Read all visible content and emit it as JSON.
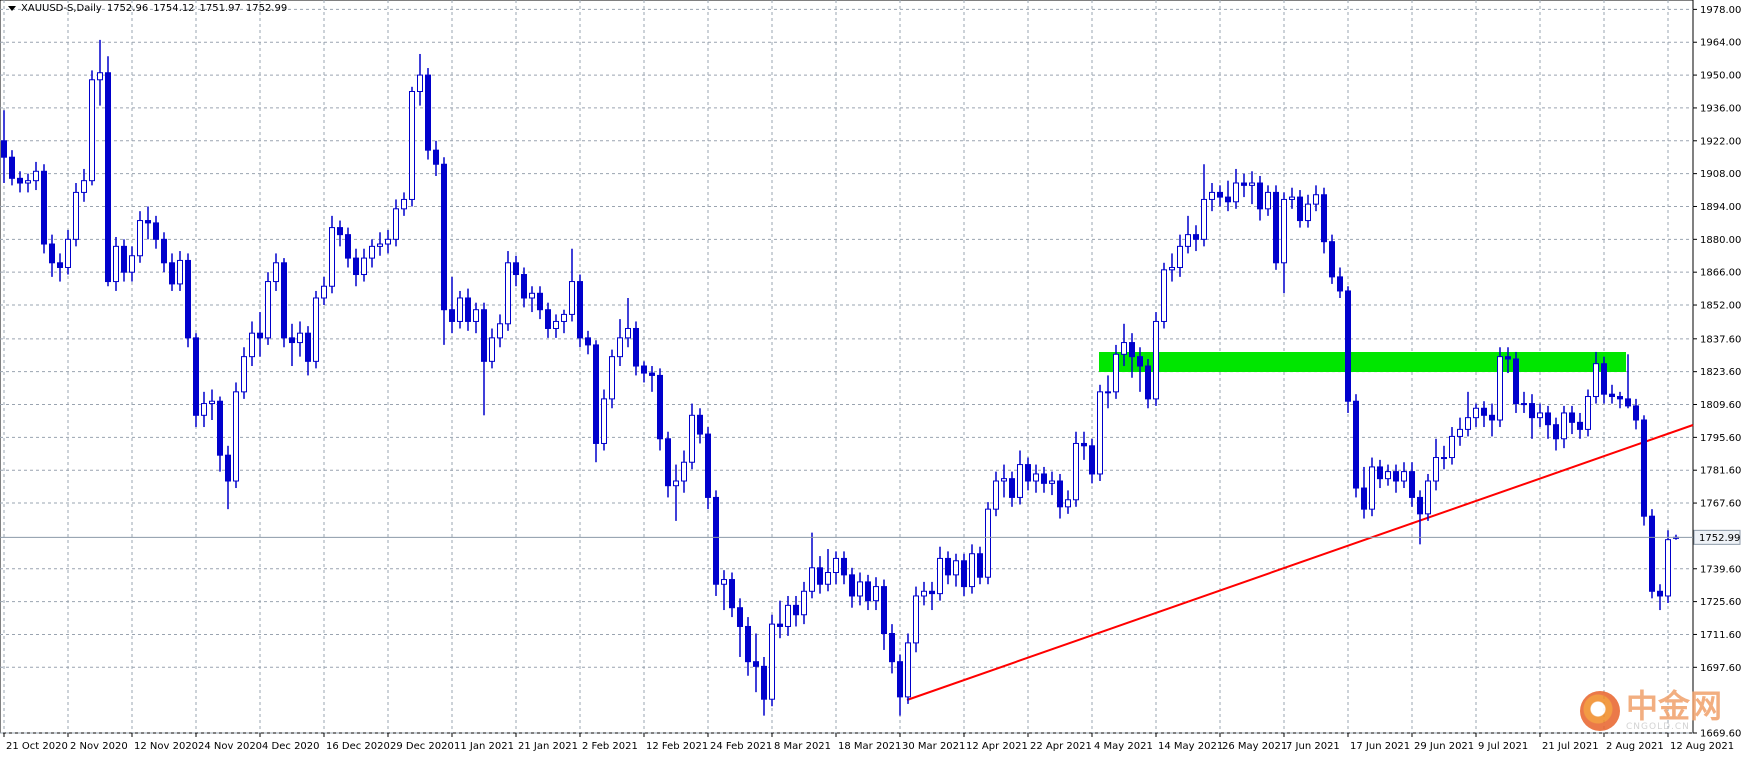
{
  "chart_data": {
    "type": "candlestick",
    "title": "XAUUSD-S,Daily",
    "bull_color": "#0000cc",
    "bear_color": "#0000cc",
    "grid": true,
    "ylim": [
      1669.6,
      1982
    ],
    "yticks": [
      {
        "value": 1978,
        "label": "1978.00"
      },
      {
        "value": 1964,
        "label": "1964.00"
      },
      {
        "value": 1950,
        "label": "1950.00"
      },
      {
        "value": 1936,
        "label": "1936.00"
      },
      {
        "value": 1922,
        "label": "1922.00"
      },
      {
        "value": 1908,
        "label": "1908.00"
      },
      {
        "value": 1894,
        "label": "1894.00"
      },
      {
        "value": 1880,
        "label": "1880.00"
      },
      {
        "value": 1866,
        "label": "1866.00"
      },
      {
        "value": 1852,
        "label": "1852.00"
      },
      {
        "value": 1837.6,
        "label": "1837.60"
      },
      {
        "value": 1823.6,
        "label": "1823.60"
      },
      {
        "value": 1809.6,
        "label": "1809.60"
      },
      {
        "value": 1795.6,
        "label": "1795.60"
      },
      {
        "value": 1781.6,
        "label": "1781.60"
      },
      {
        "value": 1767.6,
        "label": "1767.60"
      },
      {
        "value": 1739.6,
        "label": "1739.60"
      },
      {
        "value": 1725.6,
        "label": "1725.60"
      },
      {
        "value": 1711.6,
        "label": "1711.60"
      },
      {
        "value": 1697.6,
        "label": "1697.60"
      },
      {
        "value": 1669.6,
        "label": "1669.60"
      }
    ],
    "categories": [
      "21 Oct 2020",
      null,
      null,
      null,
      null,
      null,
      null,
      null,
      "2 Nov 2020",
      null,
      null,
      null,
      null,
      null,
      null,
      null,
      "12 Nov 2020",
      null,
      null,
      null,
      null,
      null,
      null,
      null,
      "24 Nov 2020",
      null,
      null,
      null,
      null,
      null,
      null,
      null,
      "4 Dec 2020",
      null,
      null,
      null,
      null,
      null,
      null,
      null,
      "16 Dec 2020",
      null,
      null,
      null,
      null,
      null,
      null,
      null,
      "29 Dec 2020",
      null,
      null,
      null,
      null,
      null,
      null,
      null,
      "11 Jan 2021",
      null,
      null,
      null,
      null,
      null,
      null,
      null,
      "21 Jan 2021",
      null,
      null,
      null,
      null,
      null,
      null,
      null,
      "2 Feb 2021",
      null,
      null,
      null,
      null,
      null,
      null,
      null,
      "12 Feb 2021",
      null,
      null,
      null,
      null,
      null,
      null,
      null,
      "24 Feb 2021",
      null,
      null,
      null,
      null,
      null,
      null,
      null,
      "8 Mar 2021",
      null,
      null,
      null,
      null,
      null,
      null,
      null,
      "18 Mar 2021",
      null,
      null,
      null,
      null,
      null,
      null,
      null,
      "30 Mar 2021",
      null,
      null,
      null,
      null,
      null,
      null,
      null,
      "12 Apr 2021",
      null,
      null,
      null,
      null,
      null,
      null,
      null,
      "22 Apr 2021",
      null,
      null,
      null,
      null,
      null,
      null,
      null,
      "4 May 2021",
      null,
      null,
      null,
      null,
      null,
      null,
      null,
      "14 May 2021",
      null,
      null,
      null,
      null,
      null,
      null,
      null,
      "26 May 2021",
      null,
      null,
      null,
      null,
      null,
      null,
      null,
      "7 Jun 2021",
      null,
      null,
      null,
      null,
      null,
      null,
      null,
      "17 Jun 2021",
      null,
      null,
      null,
      null,
      null,
      null,
      null,
      "29 Jun 2021",
      null,
      null,
      null,
      null,
      null,
      null,
      null,
      "9 Jul 2021",
      null,
      null,
      null,
      null,
      null,
      null,
      null,
      "21 Jul 2021",
      null,
      null,
      null,
      null,
      null,
      null,
      null,
      "2 Aug 2021",
      null,
      null,
      null,
      null,
      null,
      null,
      null,
      "12 Aug 2021",
      null
    ],
    "candles": [
      [
        1922,
        1935,
        1904,
        1915
      ],
      [
        1915,
        1918,
        1903,
        1906
      ],
      [
        1906,
        1909,
        1900,
        1904
      ],
      [
        1904,
        1908,
        1900,
        1905
      ],
      [
        1905,
        1913,
        1901,
        1909
      ],
      [
        1909,
        1912,
        1874,
        1878
      ],
      [
        1878,
        1882,
        1864,
        1870
      ],
      [
        1870,
        1874,
        1862,
        1868
      ],
      [
        1868,
        1884,
        1865,
        1880
      ],
      [
        1880,
        1904,
        1877,
        1900
      ],
      [
        1900,
        1910,
        1896,
        1905
      ],
      [
        1905,
        1952,
        1903,
        1948
      ],
      [
        1948,
        1965,
        1937,
        1951
      ],
      [
        1951,
        1958,
        1860,
        1862
      ],
      [
        1862,
        1881,
        1858,
        1877
      ],
      [
        1877,
        1880,
        1862,
        1866
      ],
      [
        1866,
        1877,
        1862,
        1873
      ],
      [
        1873,
        1892,
        1870,
        1888
      ],
      [
        1888,
        1894,
        1880,
        1887
      ],
      [
        1887,
        1890,
        1876,
        1880
      ],
      [
        1880,
        1883,
        1866,
        1870
      ],
      [
        1870,
        1874,
        1858,
        1861
      ],
      [
        1861,
        1875,
        1858,
        1871
      ],
      [
        1871,
        1874,
        1834,
        1838
      ],
      [
        1838,
        1840,
        1800,
        1805
      ],
      [
        1805,
        1815,
        1800,
        1810
      ],
      [
        1810,
        1816,
        1803,
        1811
      ],
      [
        1811,
        1813,
        1781,
        1788
      ],
      [
        1788,
        1792,
        1765,
        1777
      ],
      [
        1777,
        1819,
        1774,
        1815
      ],
      [
        1815,
        1834,
        1812,
        1830
      ],
      [
        1830,
        1845,
        1826,
        1840
      ],
      [
        1840,
        1849,
        1830,
        1838
      ],
      [
        1838,
        1866,
        1835,
        1862
      ],
      [
        1862,
        1874,
        1858,
        1870
      ],
      [
        1870,
        1872,
        1834,
        1838
      ],
      [
        1838,
        1844,
        1826,
        1836
      ],
      [
        1836,
        1845,
        1830,
        1840
      ],
      [
        1840,
        1843,
        1822,
        1828
      ],
      [
        1828,
        1858,
        1825,
        1855
      ],
      [
        1855,
        1864,
        1852,
        1860
      ],
      [
        1860,
        1890,
        1857,
        1885
      ],
      [
        1885,
        1888,
        1877,
        1882
      ],
      [
        1882,
        1885,
        1868,
        1872
      ],
      [
        1872,
        1876,
        1860,
        1865
      ],
      [
        1865,
        1876,
        1862,
        1872
      ],
      [
        1872,
        1880,
        1868,
        1877
      ],
      [
        1877,
        1883,
        1873,
        1878
      ],
      [
        1878,
        1884,
        1874,
        1880
      ],
      [
        1880,
        1897,
        1877,
        1893
      ],
      [
        1893,
        1900,
        1890,
        1897
      ],
      [
        1897,
        1945,
        1894,
        1943
      ],
      [
        1943,
        1959,
        1937,
        1950
      ],
      [
        1950,
        1953,
        1914,
        1918
      ],
      [
        1918,
        1922,
        1907,
        1912
      ],
      [
        1912,
        1915,
        1835,
        1850
      ],
      [
        1850,
        1864,
        1840,
        1845
      ],
      [
        1845,
        1858,
        1842,
        1855
      ],
      [
        1855,
        1859,
        1841,
        1845
      ],
      [
        1845,
        1853,
        1840,
        1850
      ],
      [
        1850,
        1853,
        1805,
        1828
      ],
      [
        1828,
        1842,
        1825,
        1838
      ],
      [
        1838,
        1848,
        1834,
        1844
      ],
      [
        1844,
        1875,
        1841,
        1870
      ],
      [
        1870,
        1873,
        1860,
        1865
      ],
      [
        1865,
        1868,
        1851,
        1855
      ],
      [
        1855,
        1860,
        1849,
        1857
      ],
      [
        1857,
        1860,
        1846,
        1850
      ],
      [
        1850,
        1853,
        1838,
        1842
      ],
      [
        1842,
        1848,
        1838,
        1845
      ],
      [
        1845,
        1850,
        1840,
        1848
      ],
      [
        1848,
        1876,
        1845,
        1862
      ],
      [
        1862,
        1865,
        1834,
        1838
      ],
      [
        1838,
        1841,
        1831,
        1835
      ],
      [
        1835,
        1837,
        1785,
        1793
      ],
      [
        1793,
        1816,
        1790,
        1812
      ],
      [
        1812,
        1833,
        1808,
        1830
      ],
      [
        1830,
        1846,
        1826,
        1838
      ],
      [
        1838,
        1855,
        1834,
        1842
      ],
      [
        1842,
        1845,
        1822,
        1826
      ],
      [
        1826,
        1828,
        1819,
        1823
      ],
      [
        1823,
        1826,
        1815,
        1822
      ],
      [
        1822,
        1825,
        1790,
        1795
      ],
      [
        1795,
        1798,
        1770,
        1775
      ],
      [
        1775,
        1784,
        1760,
        1777
      ],
      [
        1777,
        1790,
        1772,
        1785
      ],
      [
        1785,
        1810,
        1782,
        1805
      ],
      [
        1805,
        1808,
        1793,
        1797
      ],
      [
        1797,
        1800,
        1765,
        1770
      ],
      [
        1770,
        1773,
        1728,
        1733
      ],
      [
        1733,
        1739,
        1722,
        1735
      ],
      [
        1735,
        1738,
        1719,
        1723
      ],
      [
        1723,
        1727,
        1702,
        1715
      ],
      [
        1715,
        1719,
        1694,
        1700
      ],
      [
        1700,
        1712,
        1687,
        1698
      ],
      [
        1698,
        1702,
        1677,
        1684
      ],
      [
        1684,
        1720,
        1681,
        1716
      ],
      [
        1716,
        1726,
        1710,
        1715
      ],
      [
        1715,
        1728,
        1711,
        1724
      ],
      [
        1724,
        1728,
        1715,
        1720
      ],
      [
        1720,
        1734,
        1716,
        1730
      ],
      [
        1730,
        1755,
        1727,
        1740
      ],
      [
        1740,
        1745,
        1729,
        1733
      ],
      [
        1733,
        1748,
        1730,
        1738
      ],
      [
        1738,
        1747,
        1733,
        1744
      ],
      [
        1744,
        1747,
        1733,
        1737
      ],
      [
        1737,
        1740,
        1723,
        1728
      ],
      [
        1728,
        1738,
        1724,
        1734
      ],
      [
        1734,
        1737,
        1722,
        1726
      ],
      [
        1726,
        1736,
        1722,
        1732
      ],
      [
        1732,
        1735,
        1705,
        1712
      ],
      [
        1712,
        1716,
        1695,
        1700
      ],
      [
        1700,
        1703,
        1677,
        1685
      ],
      [
        1685,
        1712,
        1682,
        1708
      ],
      [
        1708,
        1732,
        1704,
        1728
      ],
      [
        1728,
        1734,
        1724,
        1730
      ],
      [
        1730,
        1734,
        1722,
        1729
      ],
      [
        1729,
        1749,
        1726,
        1744
      ],
      [
        1744,
        1747,
        1733,
        1737
      ],
      [
        1737,
        1746,
        1732,
        1743
      ],
      [
        1743,
        1746,
        1728,
        1732
      ],
      [
        1732,
        1750,
        1729,
        1746
      ],
      [
        1746,
        1749,
        1733,
        1736
      ],
      [
        1736,
        1768,
        1733,
        1765
      ],
      [
        1765,
        1781,
        1762,
        1777
      ],
      [
        1777,
        1784,
        1770,
        1778
      ],
      [
        1778,
        1781,
        1766,
        1770
      ],
      [
        1770,
        1790,
        1767,
        1784
      ],
      [
        1784,
        1787,
        1773,
        1777
      ],
      [
        1777,
        1784,
        1772,
        1780
      ],
      [
        1780,
        1783,
        1772,
        1776
      ],
      [
        1776,
        1781,
        1771,
        1777
      ],
      [
        1777,
        1780,
        1761,
        1766
      ],
      [
        1766,
        1773,
        1763,
        1769
      ],
      [
        1769,
        1798,
        1766,
        1793
      ],
      [
        1793,
        1798,
        1786,
        1792
      ],
      [
        1792,
        1795,
        1776,
        1780
      ],
      [
        1780,
        1818,
        1777,
        1815
      ],
      [
        1815,
        1822,
        1808,
        1815
      ],
      [
        1815,
        1835,
        1812,
        1831
      ],
      [
        1831,
        1844,
        1826,
        1836
      ],
      [
        1836,
        1840,
        1821,
        1830
      ],
      [
        1830,
        1834,
        1815,
        1826
      ],
      [
        1826,
        1829,
        1808,
        1812
      ],
      [
        1812,
        1849,
        1809,
        1845
      ],
      [
        1845,
        1870,
        1842,
        1867
      ],
      [
        1867,
        1874,
        1862,
        1868
      ],
      [
        1868,
        1882,
        1864,
        1877
      ],
      [
        1877,
        1890,
        1874,
        1882
      ],
      [
        1882,
        1886,
        1875,
        1880
      ],
      [
        1880,
        1912,
        1877,
        1897
      ],
      [
        1897,
        1904,
        1892,
        1900
      ],
      [
        1900,
        1903,
        1894,
        1898
      ],
      [
        1898,
        1905,
        1892,
        1896
      ],
      [
        1896,
        1910,
        1893,
        1904
      ],
      [
        1904,
        1908,
        1898,
        1903
      ],
      [
        1903,
        1909,
        1895,
        1904
      ],
      [
        1904,
        1907,
        1888,
        1893
      ],
      [
        1893,
        1903,
        1890,
        1900
      ],
      [
        1900,
        1903,
        1867,
        1870
      ],
      [
        1870,
        1900,
        1857,
        1897
      ],
      [
        1897,
        1902,
        1893,
        1898
      ],
      [
        1898,
        1901,
        1885,
        1888
      ],
      [
        1888,
        1899,
        1885,
        1895
      ],
      [
        1895,
        1903,
        1892,
        1899
      ],
      [
        1899,
        1902,
        1874,
        1879
      ],
      [
        1879,
        1882,
        1861,
        1864
      ],
      [
        1864,
        1868,
        1855,
        1858
      ],
      [
        1858,
        1860,
        1806,
        1811
      ],
      [
        1811,
        1814,
        1770,
        1774
      ],
      [
        1774,
        1783,
        1761,
        1765
      ],
      [
        1765,
        1787,
        1762,
        1783
      ],
      [
        1783,
        1786,
        1774,
        1778
      ],
      [
        1778,
        1784,
        1775,
        1781
      ],
      [
        1781,
        1784,
        1772,
        1777
      ],
      [
        1777,
        1785,
        1774,
        1781
      ],
      [
        1781,
        1785,
        1766,
        1770
      ],
      [
        1770,
        1773,
        1750,
        1763
      ],
      [
        1763,
        1780,
        1760,
        1777
      ],
      [
        1777,
        1795,
        1773,
        1787
      ],
      [
        1787,
        1792,
        1782,
        1787
      ],
      [
        1787,
        1800,
        1784,
        1796
      ],
      [
        1796,
        1804,
        1792,
        1799
      ],
      [
        1799,
        1815,
        1796,
        1804
      ],
      [
        1804,
        1810,
        1800,
        1808
      ],
      [
        1808,
        1811,
        1800,
        1805
      ],
      [
        1805,
        1810,
        1796,
        1803
      ],
      [
        1803,
        1834,
        1800,
        1830
      ],
      [
        1830,
        1834,
        1823,
        1829
      ],
      [
        1829,
        1832,
        1806,
        1810
      ],
      [
        1810,
        1815,
        1806,
        1810
      ],
      [
        1810,
        1814,
        1795,
        1804
      ],
      [
        1804,
        1810,
        1800,
        1806
      ],
      [
        1806,
        1809,
        1795,
        1801
      ],
      [
        1801,
        1804,
        1790,
        1795
      ],
      [
        1795,
        1809,
        1791,
        1806
      ],
      [
        1806,
        1809,
        1797,
        1802
      ],
      [
        1802,
        1806,
        1795,
        1799
      ],
      [
        1799,
        1816,
        1796,
        1813
      ],
      [
        1813,
        1832,
        1810,
        1827
      ],
      [
        1827,
        1830,
        1810,
        1814
      ],
      [
        1814,
        1818,
        1810,
        1813
      ],
      [
        1813,
        1815,
        1808,
        1812
      ],
      [
        1812,
        1831,
        1808,
        1809
      ],
      [
        1809,
        1812,
        1799,
        1803
      ],
      [
        1803,
        1805,
        1758,
        1762
      ],
      [
        1762,
        1765,
        1727,
        1730
      ],
      [
        1730,
        1733,
        1722,
        1728
      ],
      [
        1728,
        1756,
        1725,
        1752
      ],
      [
        1752.96,
        1754.12,
        1751.97,
        1752.99
      ]
    ]
  },
  "watermark": {
    "brand": "中金网",
    "site": "CNGOLD.CN"
  }
}
